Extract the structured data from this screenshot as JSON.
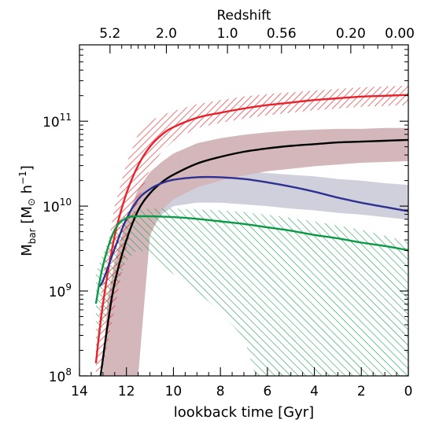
{
  "chart_data": {
    "type": "line",
    "xlabel": "lookback time [Gyr]",
    "ylabel": "M",
    "ylabel_sub": "bar",
    "ylabel_units": "[M",
    "ylabel_sun": "⊙",
    "ylabel_h": "h",
    "ylabel_exp": "−1",
    "ylabel_close": "]",
    "top_axis_label": "Redshift",
    "xlim": [
      14,
      0
    ],
    "ylim_log10": [
      8,
      11.9
    ],
    "y_scale": "log",
    "x_ticks": [
      {
        "value": 14,
        "label": "14"
      },
      {
        "value": 12,
        "label": "12"
      },
      {
        "value": 10,
        "label": "10"
      },
      {
        "value": 8,
        "label": "8"
      },
      {
        "value": 6,
        "label": "6"
      },
      {
        "value": 4,
        "label": "4"
      },
      {
        "value": 2,
        "label": "2"
      },
      {
        "value": 0,
        "label": "0"
      }
    ],
    "y_ticks": [
      {
        "exp": 8,
        "base": "10",
        "sup": "8"
      },
      {
        "exp": 9,
        "base": "10",
        "sup": "9"
      },
      {
        "exp": 10,
        "base": "10",
        "sup": "10"
      },
      {
        "exp": 11,
        "base": "10",
        "sup": "11"
      }
    ],
    "top_ticks": [
      {
        "lookback_gyr": 12.7,
        "label": "5.2"
      },
      {
        "lookback_gyr": 10.3,
        "label": "2.0"
      },
      {
        "lookback_gyr": 7.7,
        "label": "1.0"
      },
      {
        "lookback_gyr": 5.4,
        "label": "0.56"
      },
      {
        "lookback_gyr": 2.45,
        "label": "0.20"
      },
      {
        "lookback_gyr": 0.0,
        "label": "0.00"
      }
    ],
    "series": [
      {
        "color": "#e8222a",
        "x": [
          13.3,
          13.0,
          12.5,
          12.0,
          11.5,
          11.0,
          10.5,
          10.0,
          9.0,
          8.0,
          7.0,
          6.0,
          5.0,
          4.0,
          3.0,
          2.0,
          1.0,
          0.0
        ],
        "log10_y": [
          8.15,
          8.85,
          9.65,
          10.15,
          10.48,
          10.7,
          10.84,
          10.93,
          11.04,
          11.1,
          11.15,
          11.19,
          11.22,
          11.25,
          11.27,
          11.29,
          11.3,
          11.31
        ]
      },
      {
        "color": "#000000",
        "x": [
          13.1,
          12.8,
          12.5,
          12.0,
          11.5,
          11.0,
          10.5,
          10.0,
          9.0,
          8.0,
          7.0,
          6.0,
          5.0,
          4.0,
          3.0,
          2.0,
          1.0,
          0.0
        ],
        "log10_y": [
          8.0,
          8.6,
          9.1,
          9.6,
          9.95,
          10.15,
          10.28,
          10.37,
          10.5,
          10.58,
          10.64,
          10.68,
          10.71,
          10.73,
          10.75,
          10.76,
          10.77,
          10.78
        ]
      },
      {
        "color": "#2e3192",
        "x": [
          13.2,
          13.0,
          12.5,
          12.0,
          11.5,
          11.0,
          10.5,
          10.0,
          9.0,
          8.0,
          7.0,
          6.0,
          5.0,
          4.0,
          3.0,
          2.0,
          1.0,
          0.0
        ],
        "log10_y": [
          9.05,
          9.12,
          9.5,
          9.85,
          10.08,
          10.2,
          10.27,
          10.31,
          10.34,
          10.34,
          10.32,
          10.28,
          10.23,
          10.17,
          10.1,
          10.04,
          9.99,
          9.94
        ]
      },
      {
        "color": "#0a9a46",
        "x": [
          13.3,
          13.0,
          12.5,
          12.0,
          11.5,
          11.0,
          10.0,
          9.0,
          8.0,
          7.0,
          6.0,
          5.0,
          4.0,
          3.0,
          2.0,
          1.0,
          0.0
        ],
        "log10_y": [
          8.85,
          9.3,
          9.72,
          9.86,
          9.88,
          9.88,
          9.87,
          9.85,
          9.82,
          9.79,
          9.75,
          9.71,
          9.66,
          9.62,
          9.57,
          9.53,
          9.48
        ]
      }
    ],
    "bands": [
      {
        "color": "#cfd0dc",
        "style": "solid",
        "x": [
          11.2,
          10.5,
          10.0,
          9.0,
          8.0,
          7.0,
          6.0,
          5.0,
          4.0,
          3.0,
          2.0,
          1.0,
          0.0
        ],
        "log10_lower": [
          9.6,
          9.9,
          10.0,
          10.04,
          10.04,
          10.02,
          10.0,
          9.97,
          9.95,
          9.92,
          9.9,
          9.87,
          9.84
        ],
        "log10_upper": [
          10.15,
          10.28,
          10.34,
          10.39,
          10.4,
          10.4,
          10.39,
          10.37,
          10.35,
          10.32,
          10.3,
          10.27,
          10.25
        ]
      },
      {
        "color": "#d4b7ba",
        "style": "solid",
        "x": [
          13.0,
          12.8,
          12.5,
          12.0,
          11.5,
          11.0,
          10.5,
          10.0,
          9.0,
          8.0,
          7.0,
          6.0,
          5.0,
          4.0,
          3.0,
          2.0,
          1.0,
          0.0
        ],
        "log10_lower": [
          8.0,
          8.0,
          8.0,
          8.0,
          8.0,
          9.65,
          9.95,
          10.08,
          10.22,
          10.3,
          10.36,
          10.41,
          10.44,
          10.47,
          10.49,
          10.51,
          10.52,
          10.53
        ],
        "log10_upper": [
          8.1,
          8.9,
          9.35,
          9.85,
          10.2,
          10.4,
          10.52,
          10.62,
          10.74,
          10.8,
          10.84,
          10.87,
          10.89,
          10.9,
          10.91,
          10.91,
          10.92,
          10.92
        ]
      },
      {
        "color": "#0a9a46",
        "style": "hatch",
        "x": [
          13.3,
          13.0,
          12.5,
          12.0,
          11.5,
          11.0,
          10.0,
          9.0,
          8.0,
          7.0,
          6.5,
          6.0,
          5.0,
          4.0,
          3.0,
          2.0,
          1.0,
          0.0
        ],
        "log10_lower": [
          8.3,
          8.6,
          9.0,
          9.35,
          9.5,
          9.42,
          9.2,
          9.0,
          8.75,
          8.45,
          8.0,
          8.0,
          8.0,
          8.0,
          8.0,
          8.0,
          8.0,
          8.0
        ],
        "log10_upper": [
          9.2,
          9.45,
          9.75,
          9.92,
          9.96,
          9.97,
          9.97,
          9.96,
          9.95,
          9.93,
          9.91,
          9.9,
          9.86,
          9.82,
          9.77,
          9.72,
          9.65,
          9.58
        ]
      },
      {
        "color": "#e8222a",
        "style": "hatch",
        "x": [
          13.3,
          13.0,
          12.5,
          12.0,
          11.5,
          11.0,
          10.5,
          10.0,
          9.0,
          8.0,
          7.0,
          6.0,
          5.0,
          4.0,
          3.0,
          2.0,
          1.0,
          0.0
        ],
        "log10_lower": [
          8.0,
          8.1,
          8.8,
          9.5,
          10.05,
          10.45,
          10.64,
          10.77,
          10.92,
          10.98,
          11.03,
          11.07,
          11.1,
          11.13,
          11.15,
          11.17,
          11.18,
          11.19
        ],
        "log10_upper": [
          8.3,
          9.2,
          10.0,
          10.5,
          10.85,
          11.0,
          11.07,
          11.12,
          11.2,
          11.25,
          11.29,
          11.32,
          11.34,
          11.36,
          11.38,
          11.4,
          11.41,
          11.42
        ]
      }
    ]
  }
}
